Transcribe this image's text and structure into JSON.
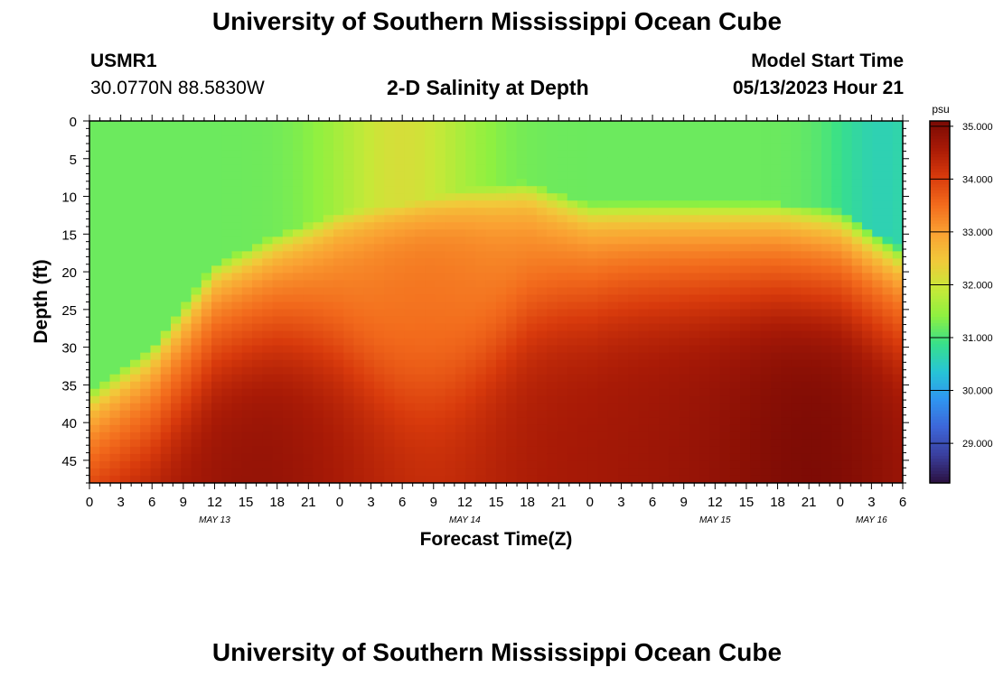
{
  "header": {
    "title": "University of Southern Mississippi Ocean Cube",
    "station_id": "USMR1",
    "coordinates": "30.0770N  88.5830W",
    "plot_title": "2-D Salinity at Depth",
    "model_start_label": "Model Start Time",
    "model_start_value": "05/13/2023 Hour 21"
  },
  "footer": {
    "title_repeat": "University of Southern Mississippi Ocean Cube"
  },
  "colorbar": {
    "unit": "psu",
    "ticks": [
      "35.000",
      "34.000",
      "33.000",
      "32.000",
      "31.000",
      "30.000",
      "29.000"
    ],
    "tick_values": [
      35,
      34,
      33,
      32,
      31,
      30,
      29
    ],
    "min": 28.25,
    "max": 35.1,
    "colors": [
      "#2b1140",
      "#3a3f9e",
      "#3d66d8",
      "#2f95f0",
      "#27c4d6",
      "#38e08a",
      "#8ff040",
      "#c8e838",
      "#f2c83a",
      "#faa032",
      "#f26a1c",
      "#d83a0c",
      "#a81a06",
      "#7a0a05"
    ]
  },
  "chart_data": {
    "type": "heatmap",
    "title": "2-D Salinity at Depth",
    "xlabel": "Forecast Time(Z)",
    "ylabel": "Depth (ft)",
    "value_unit": "psu",
    "x_ticks": [
      "0",
      "3",
      "6",
      "9",
      "12",
      "15",
      "18",
      "21",
      "0",
      "3",
      "6",
      "9",
      "12",
      "15",
      "18",
      "21",
      "0",
      "3",
      "6",
      "9",
      "12",
      "15",
      "18",
      "21",
      "0",
      "3",
      "6"
    ],
    "x_range_hours": [
      0,
      78
    ],
    "date_labels": [
      {
        "text": "MAY 13",
        "hour": 12
      },
      {
        "text": "MAY 14",
        "hour": 36
      },
      {
        "text": "MAY 15",
        "hour": 60
      },
      {
        "text": "MAY 16",
        "hour": 75
      }
    ],
    "y_ticks": [
      "0",
      "5",
      "10",
      "15",
      "20",
      "25",
      "30",
      "35",
      "40",
      "45"
    ],
    "y_range": [
      0,
      48
    ],
    "value_range": [
      28.25,
      35.1
    ],
    "profile_description": "salinity vs depth; fresh surface layer over saline bottom water",
    "halocline_top_hours": [
      0,
      6,
      12,
      18,
      24,
      30,
      36,
      42,
      48,
      54,
      60,
      66,
      72,
      78
    ],
    "halocline_top_depth_ft": [
      36,
      30,
      19,
      15,
      12,
      11,
      9,
      8,
      11,
      11,
      11,
      11,
      12,
      17
    ]
  }
}
